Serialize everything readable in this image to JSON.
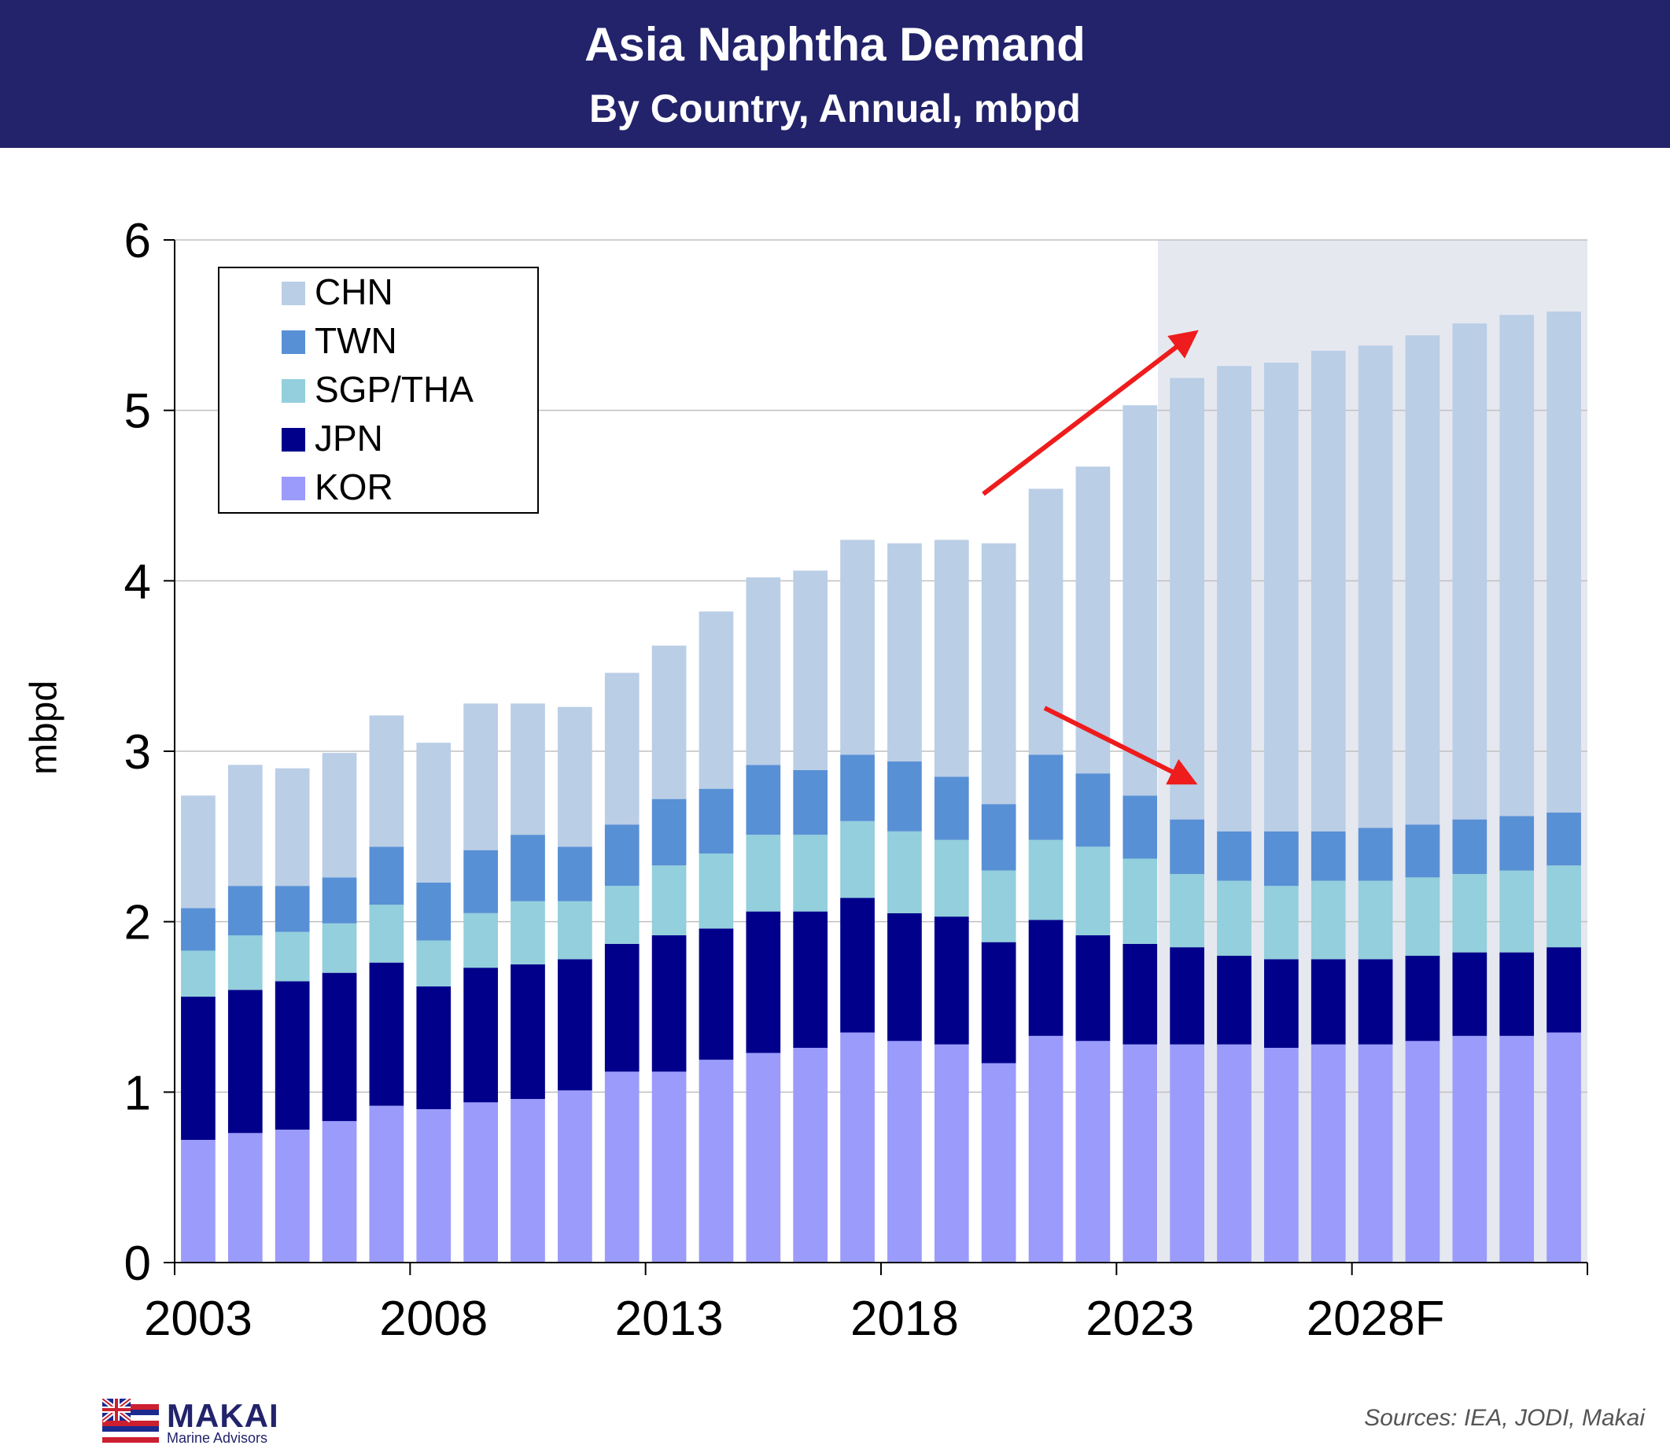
{
  "header": {
    "title": "Asia Naphtha Demand",
    "subtitle": "By Country, Annual, mbpd"
  },
  "footer": {
    "brand": "MAKAI",
    "brand_sub": "Marine Advisors",
    "sources": "Sources: IEA,  JODI, Makai"
  },
  "colors": {
    "header_bg": "#22236a",
    "forecast_shade": "#e6e8f0",
    "arrow": "#ee1c1c"
  },
  "chart_data": {
    "type": "bar",
    "stacked": true,
    "ylabel": "mbpd",
    "ylim": [
      0,
      6
    ],
    "yticks": [
      "0",
      "1",
      "2",
      "3",
      "4",
      "5",
      "6"
    ],
    "xtick_labels": [
      "2003",
      "2008",
      "2013",
      "2018",
      "2023",
      "2028F"
    ],
    "categories": [
      "2003",
      "2004",
      "2005",
      "2006",
      "2007",
      "2008",
      "2009",
      "2010",
      "2011",
      "2012",
      "2013",
      "2014",
      "2015",
      "2016",
      "2017",
      "2018",
      "2019",
      "2020",
      "2021",
      "2022",
      "2023",
      "2024",
      "2025",
      "2026",
      "2027",
      "2028",
      "2029",
      "2030",
      "2031",
      "2032"
    ],
    "forecast_start": "2024",
    "legend_position": "top-left",
    "grid": true,
    "series": [
      {
        "name": "KOR",
        "color": "#9b9bfb",
        "values": [
          0.72,
          0.76,
          0.78,
          0.83,
          0.92,
          0.9,
          0.94,
          0.96,
          1.01,
          1.12,
          1.12,
          1.19,
          1.23,
          1.26,
          1.35,
          1.3,
          1.28,
          1.17,
          1.33,
          1.3,
          1.28,
          1.28,
          1.28,
          1.26,
          1.28,
          1.28,
          1.3,
          1.33,
          1.33,
          1.35
        ]
      },
      {
        "name": "JPN",
        "color": "#00008b",
        "values": [
          0.84,
          0.84,
          0.87,
          0.87,
          0.84,
          0.72,
          0.79,
          0.79,
          0.77,
          0.75,
          0.8,
          0.77,
          0.83,
          0.8,
          0.79,
          0.75,
          0.75,
          0.71,
          0.68,
          0.62,
          0.59,
          0.57,
          0.52,
          0.52,
          0.5,
          0.5,
          0.5,
          0.49,
          0.49,
          0.5
        ]
      },
      {
        "name": "SGP/THA",
        "color": "#93cfdc",
        "values": [
          0.27,
          0.32,
          0.29,
          0.29,
          0.34,
          0.27,
          0.32,
          0.37,
          0.34,
          0.34,
          0.41,
          0.44,
          0.45,
          0.45,
          0.45,
          0.48,
          0.45,
          0.42,
          0.47,
          0.52,
          0.5,
          0.43,
          0.44,
          0.43,
          0.46,
          0.46,
          0.46,
          0.46,
          0.48,
          0.48
        ]
      },
      {
        "name": "TWN",
        "color": "#5890d5",
        "values": [
          0.25,
          0.29,
          0.27,
          0.27,
          0.34,
          0.34,
          0.37,
          0.39,
          0.32,
          0.36,
          0.39,
          0.38,
          0.41,
          0.38,
          0.39,
          0.41,
          0.37,
          0.39,
          0.5,
          0.43,
          0.37,
          0.32,
          0.29,
          0.32,
          0.29,
          0.31,
          0.31,
          0.32,
          0.32,
          0.31
        ]
      },
      {
        "name": "CHN",
        "color": "#bacee6",
        "values": [
          0.66,
          0.71,
          0.69,
          0.73,
          0.77,
          0.82,
          0.86,
          0.77,
          0.82,
          0.89,
          0.9,
          1.04,
          1.1,
          1.17,
          1.26,
          1.28,
          1.39,
          1.53,
          1.56,
          1.8,
          2.29,
          2.59,
          2.73,
          2.75,
          2.82,
          2.83,
          2.87,
          2.91,
          2.94,
          2.94
        ]
      }
    ],
    "annotations": [
      {
        "type": "arrow",
        "direction": "up",
        "target": "CHN growth"
      },
      {
        "type": "arrow",
        "direction": "down",
        "target": "non-CHN decline"
      }
    ]
  }
}
